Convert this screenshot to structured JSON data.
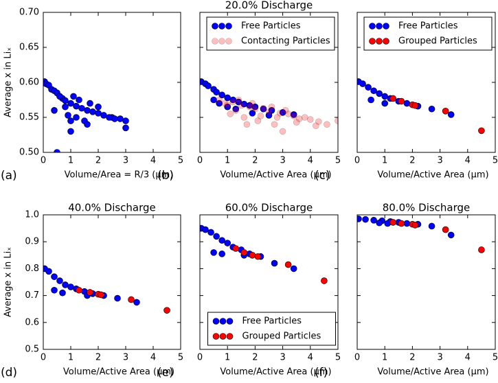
{
  "chart_data": [
    {
      "type": "scatter",
      "panel_label": "(a)",
      "xlabel": "Volume/Area = R/3 (μm)",
      "ylabel": "Average x in Liₓ",
      "xlim": [
        0,
        5
      ],
      "ylim": [
        0.5,
        0.7
      ],
      "xticks": [
        0,
        1,
        2,
        3,
        4,
        5
      ],
      "yticks": [
        {
          "value": 0.5,
          "label": "0.50"
        },
        0.55,
        {
          "value": 0.6,
          "label": "0.60"
        },
        0.65,
        {
          "value": 0.7,
          "label": "0.70"
        }
      ],
      "show_yticklabels": true,
      "series": [
        {
          "color": "#0000ff",
          "x": [
            0.05,
            0.1,
            0.2,
            0.3,
            0.4,
            0.5,
            0.6,
            0.7,
            0.8,
            1.0,
            1.2,
            1.4,
            1.6,
            1.8,
            2.0,
            2.2,
            2.5,
            2.8,
            3.0,
            3.0,
            2.6,
            2.4,
            1.5,
            1.2,
            0.9,
            0.8,
            1.1,
            1.3,
            1.7,
            2.0,
            1.0,
            1.0,
            1.6,
            0.4,
            0.6,
            0.5
          ],
          "y": [
            0.601,
            0.598,
            0.596,
            0.59,
            0.588,
            0.585,
            0.58,
            0.577,
            0.574,
            0.57,
            0.566,
            0.563,
            0.56,
            0.558,
            0.556,
            0.553,
            0.55,
            0.548,
            0.545,
            0.535,
            0.548,
            0.55,
            0.545,
            0.55,
            0.553,
            0.565,
            0.58,
            0.575,
            0.57,
            0.565,
            0.545,
            0.53,
            0.54,
            0.56,
            0.58,
            0.5
          ]
        }
      ]
    },
    {
      "type": "scatter",
      "title": "20.0% Discharge",
      "panel_label": "(b)",
      "xlabel": "Volume/Active Area (μm)",
      "xlim": [
        0,
        5
      ],
      "ylim": [
        0.5,
        0.7
      ],
      "xticks": [
        0,
        1,
        2,
        3,
        4,
        5
      ],
      "yticks": [
        0.5,
        0.55,
        0.6,
        0.65,
        0.7
      ],
      "show_yticklabels": false,
      "legend": "upper right",
      "series": [
        {
          "name": "Free Particles",
          "color": "#0000ff",
          "alpha": 1,
          "x": [
            0.05,
            0.2,
            0.3,
            0.5,
            0.6,
            0.8,
            1.0,
            1.2,
            1.4,
            1.6,
            1.8,
            2.0,
            2.3,
            2.6,
            3.0,
            3.4,
            0.5,
            0.7,
            1.0,
            1.3,
            1.9,
            2.5
          ],
          "y": [
            0.601,
            0.598,
            0.595,
            0.59,
            0.586,
            0.582,
            0.578,
            0.575,
            0.572,
            0.569,
            0.567,
            0.565,
            0.562,
            0.56,
            0.557,
            0.554,
            0.575,
            0.57,
            0.565,
            0.562,
            0.556,
            0.553
          ]
        },
        {
          "name": "Contacting Particles",
          "color": "#ff0000",
          "alpha": 0.25,
          "x": [
            0.7,
            0.9,
            1.0,
            1.2,
            1.3,
            1.5,
            1.6,
            1.8,
            2.0,
            2.1,
            2.3,
            2.5,
            2.7,
            2.9,
            3.0,
            3.2,
            3.4,
            3.6,
            3.8,
            4.0,
            4.3,
            4.6,
            5.0,
            1.1,
            1.4,
            1.7,
            2.2,
            2.6,
            3.1,
            3.5,
            1.9,
            2.8,
            4.2
          ],
          "y": [
            0.575,
            0.57,
            0.568,
            0.572,
            0.56,
            0.567,
            0.55,
            0.565,
            0.562,
            0.545,
            0.563,
            0.558,
            0.54,
            0.556,
            0.53,
            0.555,
            0.552,
            0.548,
            0.55,
            0.547,
            0.544,
            0.54,
            0.545,
            0.555,
            0.575,
            0.54,
            0.552,
            0.565,
            0.56,
            0.543,
            0.57,
            0.55,
            0.538
          ]
        }
      ]
    },
    {
      "type": "scatter",
      "panel_label": "(c)",
      "xlabel": "Volume/Active Area (μm)",
      "xlim": [
        0,
        5
      ],
      "ylim": [
        0.5,
        0.7
      ],
      "xticks": [
        0,
        1,
        2,
        3,
        4,
        5
      ],
      "yticks": [
        0.5,
        0.55,
        0.6,
        0.65,
        0.7
      ],
      "show_yticklabels": false,
      "legend": "upper right",
      "series": [
        {
          "name": "Free Particles",
          "color": "#0000ff",
          "alpha": 1,
          "x": [
            0.05,
            0.2,
            0.4,
            0.6,
            0.8,
            1.0,
            1.2,
            1.5,
            1.8,
            2.2,
            2.7,
            3.4,
            0.5,
            1.0
          ],
          "y": [
            0.601,
            0.598,
            0.593,
            0.588,
            0.584,
            0.58,
            0.577,
            0.573,
            0.57,
            0.566,
            0.562,
            0.554,
            0.575,
            0.57
          ]
        },
        {
          "name": "Grouped Particles",
          "color": "#ff0000",
          "alpha": 1,
          "x": [
            1.3,
            1.6,
            2.0,
            2.1,
            3.2,
            4.5
          ],
          "y": [
            0.577,
            0.573,
            0.568,
            0.567,
            0.559,
            0.531
          ]
        }
      ]
    },
    {
      "type": "scatter",
      "title": "40.0% Discharge",
      "panel_label": "(d)",
      "xlabel": "Volume/Active Area (μm)",
      "ylabel": "Average x in Liₓ",
      "xlim": [
        0,
        5
      ],
      "ylim": [
        0.5,
        1.0
      ],
      "xticks": [
        0,
        1,
        2,
        3,
        4,
        5
      ],
      "yticks": [
        0.5,
        0.6,
        0.7,
        0.8,
        0.9,
        {
          "value": 1,
          "label": "1.0"
        }
      ],
      "show_yticklabels": true,
      "series": [
        {
          "name": "Free Particles",
          "color": "#0000ff",
          "alpha": 1,
          "x": [
            0.05,
            0.2,
            0.4,
            0.6,
            0.8,
            1.0,
            1.2,
            1.5,
            1.8,
            2.2,
            2.7,
            3.4,
            0.4,
            0.7,
            1.6
          ],
          "y": [
            0.8,
            0.79,
            0.77,
            0.755,
            0.74,
            0.732,
            0.725,
            0.715,
            0.707,
            0.7,
            0.69,
            0.675,
            0.72,
            0.71,
            0.7
          ]
        },
        {
          "name": "Grouped Particles",
          "color": "#ff0000",
          "alpha": 1,
          "x": [
            1.3,
            1.7,
            2.0,
            2.1,
            3.2,
            4.5
          ],
          "y": [
            0.72,
            0.712,
            0.705,
            0.703,
            0.685,
            0.645
          ]
        }
      ]
    },
    {
      "type": "scatter",
      "title": "60.0% Discharge",
      "panel_label": "(e)",
      "xlabel": "Volume/Active Area (μm)",
      "xlim": [
        0,
        5
      ],
      "ylim": [
        0.5,
        1.0
      ],
      "xticks": [
        0,
        1,
        2,
        3,
        4,
        5
      ],
      "yticks": [
        0.5,
        0.6,
        0.7,
        0.8,
        0.9,
        1
      ],
      "show_yticklabels": false,
      "legend": "lower center",
      "series": [
        {
          "name": "Free Particles",
          "color": "#0000ff",
          "alpha": 1,
          "x": [
            0.05,
            0.2,
            0.4,
            0.6,
            0.8,
            1.0,
            1.2,
            1.5,
            1.8,
            2.2,
            2.7,
            3.4,
            0.5,
            0.8,
            1.6
          ],
          "y": [
            0.95,
            0.945,
            0.935,
            0.92,
            0.905,
            0.895,
            0.88,
            0.87,
            0.855,
            0.845,
            0.82,
            0.8,
            0.86,
            0.855,
            0.85
          ]
        },
        {
          "name": "Grouped Particles",
          "color": "#ff0000",
          "alpha": 1,
          "x": [
            1.3,
            1.6,
            1.9,
            2.1,
            3.2,
            4.5
          ],
          "y": [
            0.875,
            0.86,
            0.85,
            0.845,
            0.815,
            0.755
          ]
        }
      ]
    },
    {
      "type": "scatter",
      "title": "80.0% Discharge",
      "panel_label": "(f)",
      "xlabel": "Volume/Active Area (μm)",
      "xlim": [
        0,
        5
      ],
      "ylim": [
        0.5,
        1.0
      ],
      "xticks": [
        0,
        1,
        2,
        3,
        4,
        5
      ],
      "yticks": [
        0.5,
        0.6,
        0.7,
        0.8,
        0.9,
        1
      ],
      "show_yticklabels": false,
      "series": [
        {
          "name": "Free Particles",
          "color": "#0000ff",
          "alpha": 1,
          "x": [
            0.05,
            0.3,
            0.6,
            0.9,
            1.2,
            1.5,
            1.8,
            2.2,
            2.7,
            3.4,
            0.8,
            1.1
          ],
          "y": [
            0.985,
            0.983,
            0.98,
            0.978,
            0.975,
            0.972,
            0.968,
            0.965,
            0.958,
            0.925,
            0.97,
            0.968
          ]
        },
        {
          "name": "Grouped Particles",
          "color": "#ff0000",
          "alpha": 1,
          "x": [
            1.3,
            1.6,
            2.0,
            2.1,
            3.2,
            4.5
          ],
          "y": [
            0.972,
            0.968,
            0.965,
            0.962,
            0.945,
            0.87
          ]
        }
      ]
    }
  ]
}
